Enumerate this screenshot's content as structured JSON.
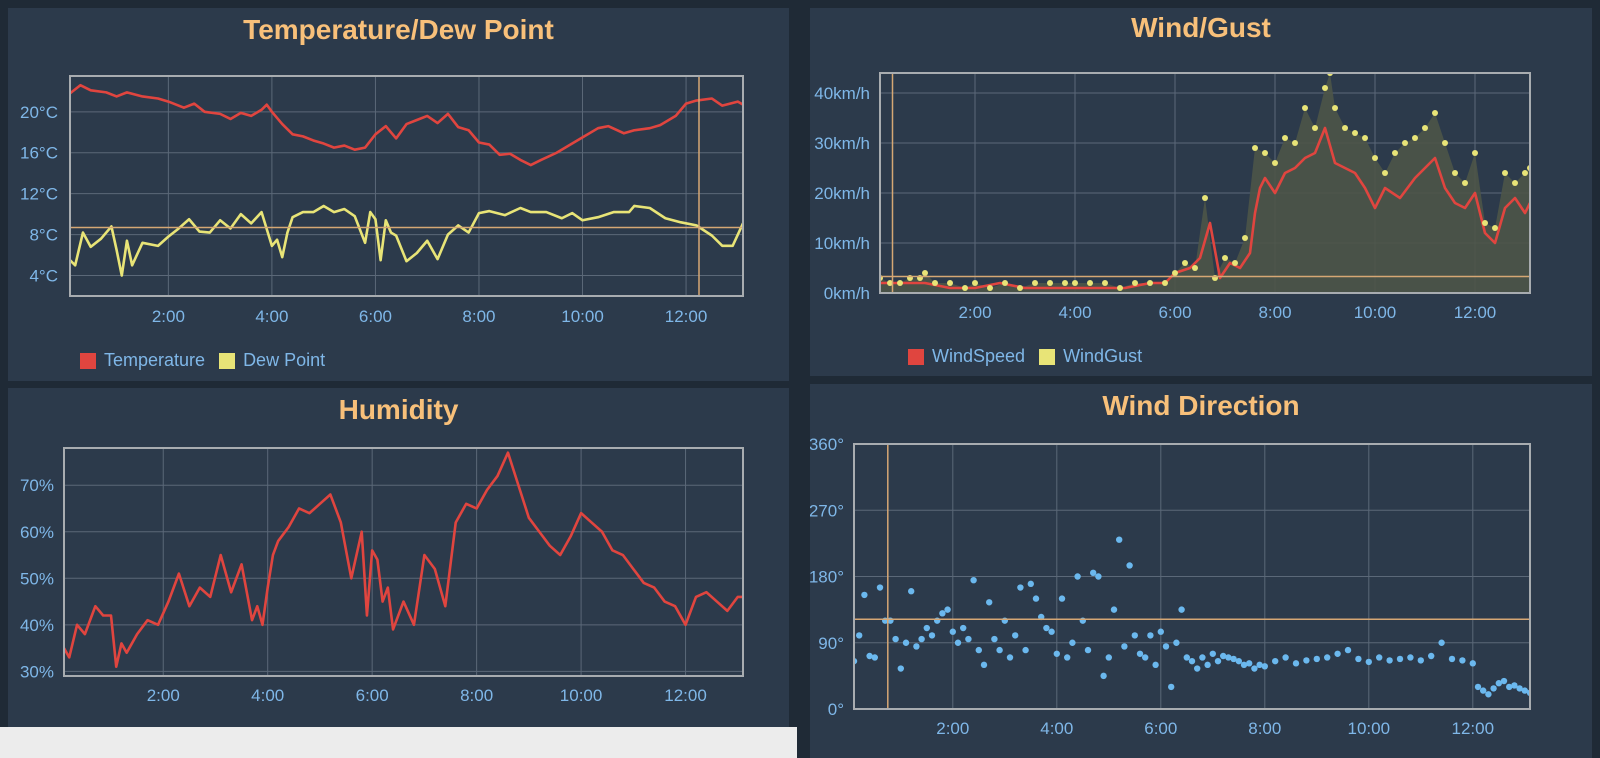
{
  "colors": {
    "background": "#2c3a4b",
    "title": "#f8c07a",
    "axis_text": "#7fb7e8",
    "grid": "#5b6878",
    "frame": "#a8acb0",
    "cursor": "#d6a774",
    "red": "#e0453f",
    "yellow": "#e8e477",
    "blue": "#6bb8ee"
  },
  "chart_data": [
    {
      "id": "temp",
      "type": "line",
      "title": "Temperature/Dew Point",
      "x_ticks": [
        "2:00",
        "4:00",
        "6:00",
        "8:00",
        "10:00",
        "12:00"
      ],
      "y_ticks": [
        "4°C",
        "8°C",
        "12°C",
        "16°C",
        "20°C"
      ],
      "xlim": [
        0.1,
        13.1
      ],
      "ylim": [
        2,
        23.5
      ],
      "y_tick_values": [
        4,
        8,
        12,
        16,
        20
      ],
      "cursor": {
        "x": 12.25,
        "y": 8.7
      },
      "legend": [
        "Temperature",
        "Dew Point"
      ],
      "series": [
        {
          "name": "Temperature",
          "color": "red",
          "x": [
            0.1,
            0.3,
            0.5,
            0.8,
            1.0,
            1.2,
            1.5,
            1.8,
            2.0,
            2.3,
            2.5,
            2.7,
            3.0,
            3.2,
            3.4,
            3.6,
            3.8,
            3.9,
            4.0,
            4.2,
            4.4,
            4.6,
            4.8,
            5.0,
            5.2,
            5.4,
            5.6,
            5.8,
            6.0,
            6.2,
            6.4,
            6.6,
            6.8,
            7.0,
            7.2,
            7.4,
            7.6,
            7.8,
            8.0,
            8.2,
            8.4,
            8.6,
            8.8,
            9.0,
            9.2,
            9.5,
            9.8,
            10.0,
            10.3,
            10.5,
            10.8,
            11.0,
            11.3,
            11.5,
            11.8,
            12.0,
            12.2,
            12.5,
            12.7,
            13.0,
            13.1
          ],
          "y": [
            21.8,
            22.6,
            22.1,
            21.9,
            21.5,
            21.9,
            21.5,
            21.3,
            21.0,
            20.4,
            20.8,
            20.0,
            19.8,
            19.3,
            19.9,
            19.6,
            20.2,
            20.7,
            20.0,
            18.8,
            17.8,
            17.6,
            17.2,
            16.9,
            16.5,
            16.7,
            16.3,
            16.5,
            17.8,
            18.6,
            17.4,
            18.8,
            19.2,
            19.6,
            18.9,
            19.8,
            18.5,
            18.2,
            17.0,
            16.8,
            15.8,
            15.9,
            15.3,
            14.8,
            15.3,
            16.0,
            16.9,
            17.5,
            18.4,
            18.6,
            17.9,
            18.2,
            18.4,
            18.7,
            19.6,
            20.8,
            21.1,
            21.3,
            20.6,
            21.0,
            20.7
          ]
        },
        {
          "name": "Dew Point",
          "color": "yellow",
          "x": [
            0.1,
            0.2,
            0.35,
            0.5,
            0.7,
            0.9,
            1.0,
            1.1,
            1.2,
            1.3,
            1.5,
            1.8,
            2.0,
            2.2,
            2.4,
            2.6,
            2.8,
            3.0,
            3.2,
            3.4,
            3.6,
            3.8,
            4.0,
            4.1,
            4.2,
            4.3,
            4.4,
            4.6,
            4.8,
            5.0,
            5.2,
            5.4,
            5.6,
            5.8,
            5.9,
            6.0,
            6.1,
            6.2,
            6.3,
            6.4,
            6.6,
            6.8,
            7.0,
            7.2,
            7.4,
            7.6,
            7.8,
            8.0,
            8.2,
            8.5,
            8.8,
            9.0,
            9.3,
            9.6,
            9.8,
            10.0,
            10.3,
            10.6,
            10.9,
            11.0,
            11.3,
            11.6,
            11.9,
            12.2,
            12.5,
            12.7,
            12.9,
            13.1
          ],
          "y": [
            5.5,
            5.0,
            8.2,
            6.8,
            7.6,
            8.8,
            6.5,
            4.0,
            7.4,
            5.0,
            7.2,
            6.9,
            7.8,
            8.6,
            9.5,
            8.3,
            8.2,
            9.4,
            8.6,
            10.0,
            9.1,
            10.2,
            6.9,
            7.5,
            5.8,
            8.2,
            9.7,
            10.2,
            10.2,
            10.8,
            10.2,
            10.5,
            9.8,
            7.2,
            10.2,
            9.5,
            5.5,
            9.4,
            8.2,
            7.9,
            5.4,
            6.2,
            7.4,
            5.6,
            8.0,
            8.9,
            8.2,
            10.1,
            10.3,
            9.9,
            10.6,
            10.2,
            10.2,
            9.6,
            10.1,
            9.4,
            9.7,
            10.2,
            10.2,
            10.8,
            10.6,
            9.6,
            9.2,
            8.9,
            7.9,
            6.9,
            6.9,
            9.1
          ]
        }
      ]
    },
    {
      "id": "hum",
      "type": "line",
      "title": "Humidity",
      "x_ticks": [
        "2:00",
        "4:00",
        "6:00",
        "8:00",
        "10:00",
        "12:00"
      ],
      "y_ticks": [
        "30%",
        "40%",
        "50%",
        "60%",
        "70%"
      ],
      "xlim": [
        0.1,
        13.1
      ],
      "ylim": [
        29,
        78
      ],
      "y_tick_values": [
        30,
        40,
        50,
        60,
        70
      ],
      "series": [
        {
          "name": "Humidity",
          "color": "red",
          "x": [
            0.1,
            0.2,
            0.35,
            0.5,
            0.7,
            0.85,
            1.0,
            1.1,
            1.2,
            1.3,
            1.5,
            1.7,
            1.9,
            2.1,
            2.3,
            2.5,
            2.7,
            2.9,
            3.1,
            3.3,
            3.5,
            3.7,
            3.8,
            3.9,
            4.0,
            4.1,
            4.2,
            4.4,
            4.6,
            4.8,
            5.0,
            5.2,
            5.4,
            5.6,
            5.8,
            5.9,
            6.0,
            6.1,
            6.2,
            6.3,
            6.4,
            6.6,
            6.8,
            7.0,
            7.2,
            7.4,
            7.6,
            7.8,
            8.0,
            8.2,
            8.4,
            8.6,
            8.8,
            9.0,
            9.2,
            9.4,
            9.6,
            9.8,
            10.0,
            10.2,
            10.4,
            10.6,
            10.8,
            11.0,
            11.2,
            11.4,
            11.6,
            11.8,
            12.0,
            12.2,
            12.4,
            12.6,
            12.8,
            13.0,
            13.1
          ],
          "y": [
            35,
            33,
            40,
            38,
            44,
            42,
            42,
            31,
            36,
            34,
            38,
            41,
            40,
            45,
            51,
            44,
            48,
            46,
            55,
            47,
            53,
            41,
            44,
            40,
            48,
            55,
            58,
            61,
            65,
            64,
            66,
            68,
            62,
            50,
            60,
            42,
            56,
            54,
            45,
            48,
            39,
            45,
            40,
            55,
            52,
            44,
            62,
            66,
            65,
            69,
            72,
            77,
            70,
            63,
            60,
            57,
            55,
            59,
            64,
            62,
            60,
            56,
            55,
            52,
            49,
            48,
            45,
            44,
            40,
            46,
            47,
            45,
            43,
            46,
            46
          ]
        }
      ]
    },
    {
      "id": "wind",
      "type": "line",
      "title": "Wind/Gust",
      "x_ticks": [
        "2:00",
        "4:00",
        "6:00",
        "8:00",
        "10:00",
        "12:00"
      ],
      "y_ticks": [
        "0km/h",
        "10km/h",
        "20km/h",
        "30km/h",
        "40km/h"
      ],
      "xlim": [
        0.1,
        13.1
      ],
      "ylim": [
        0,
        44
      ],
      "y_tick_values": [
        0,
        10,
        20,
        30,
        40
      ],
      "cursor": {
        "x": 0.35,
        "y": 3.3
      },
      "legend": [
        "WindSpeed",
        "WindGust"
      ],
      "series": [
        {
          "name": "WindSpeed",
          "color": "red",
          "x": [
            0.1,
            0.5,
            1.0,
            1.5,
            2.0,
            2.5,
            3.0,
            3.5,
            4.0,
            4.5,
            5.0,
            5.5,
            5.8,
            6.0,
            6.3,
            6.5,
            6.7,
            6.9,
            7.1,
            7.3,
            7.5,
            7.6,
            7.7,
            7.8,
            8.0,
            8.2,
            8.4,
            8.6,
            8.8,
            9.0,
            9.2,
            9.4,
            9.6,
            9.8,
            10.0,
            10.2,
            10.5,
            10.8,
            11.0,
            11.2,
            11.4,
            11.6,
            11.8,
            12.0,
            12.2,
            12.4,
            12.6,
            12.8,
            13.0,
            13.1
          ],
          "y": [
            2,
            2,
            2,
            1,
            1,
            2,
            1,
            1,
            1,
            1,
            1,
            2,
            2,
            4,
            5,
            7,
            14,
            3,
            6,
            5,
            8,
            16,
            21,
            23,
            20,
            24,
            25,
            27,
            28,
            33,
            26,
            25,
            24,
            21,
            17,
            21,
            19,
            23,
            25,
            27,
            21,
            18,
            17,
            20,
            12,
            10,
            17,
            19,
            16,
            18
          ]
        },
        {
          "name": "WindGust",
          "color": "yellow",
          "type": "scatter",
          "x": [
            0.1,
            0.3,
            0.5,
            0.7,
            0.9,
            1.0,
            1.2,
            1.5,
            1.8,
            2.0,
            2.3,
            2.6,
            2.9,
            3.2,
            3.5,
            3.8,
            4.0,
            4.3,
            4.6,
            4.9,
            5.2,
            5.5,
            5.8,
            6.0,
            6.2,
            6.4,
            6.6,
            6.8,
            7.0,
            7.2,
            7.4,
            7.6,
            7.8,
            8.0,
            8.2,
            8.4,
            8.6,
            8.8,
            9.0,
            9.1,
            9.2,
            9.4,
            9.6,
            9.8,
            10.0,
            10.2,
            10.4,
            10.6,
            10.8,
            11.0,
            11.2,
            11.4,
            11.6,
            11.8,
            12.0,
            12.2,
            12.4,
            12.6,
            12.8,
            13.0,
            13.1
          ],
          "y": [
            3,
            2,
            2,
            3,
            3,
            4,
            2,
            2,
            1,
            2,
            1,
            2,
            1,
            2,
            2,
            2,
            2,
            2,
            2,
            1,
            2,
            2,
            2,
            4,
            6,
            5,
            19,
            3,
            7,
            6,
            11,
            29,
            28,
            26,
            31,
            30,
            37,
            33,
            41,
            44,
            37,
            33,
            32,
            31,
            27,
            24,
            28,
            30,
            31,
            33,
            36,
            30,
            24,
            22,
            28,
            14,
            13,
            24,
            22,
            24,
            25
          ]
        }
      ]
    },
    {
      "id": "dir",
      "type": "scatter",
      "title": "Wind Direction",
      "x_ticks": [
        "2:00",
        "4:00",
        "6:00",
        "8:00",
        "10:00",
        "12:00"
      ],
      "y_ticks": [
        "0°",
        "90°",
        "180°",
        "270°",
        "360°"
      ],
      "xlim": [
        0.1,
        13.1
      ],
      "ylim": [
        0,
        360
      ],
      "y_tick_values": [
        0,
        90,
        180,
        270,
        360
      ],
      "cursor": {
        "x": 0.75,
        "y": 122
      },
      "series": [
        {
          "name": "Direction",
          "color": "blue",
          "x": [
            0.1,
            0.2,
            0.3,
            0.4,
            0.5,
            0.6,
            0.7,
            0.8,
            0.9,
            1.0,
            1.1,
            1.2,
            1.3,
            1.4,
            1.5,
            1.6,
            1.7,
            1.8,
            1.9,
            2.0,
            2.1,
            2.2,
            2.3,
            2.4,
            2.5,
            2.6,
            2.7,
            2.8,
            2.9,
            3.0,
            3.1,
            3.2,
            3.3,
            3.4,
            3.5,
            3.6,
            3.7,
            3.8,
            3.9,
            4.0,
            4.1,
            4.2,
            4.3,
            4.4,
            4.5,
            4.6,
            4.7,
            4.8,
            4.9,
            5.0,
            5.1,
            5.2,
            5.3,
            5.4,
            5.5,
            5.6,
            5.7,
            5.8,
            5.9,
            6.0,
            6.1,
            6.2,
            6.3,
            6.4,
            6.5,
            6.6,
            6.7,
            6.8,
            6.9,
            7.0,
            7.1,
            7.2,
            7.3,
            7.4,
            7.5,
            7.6,
            7.7,
            7.8,
            7.9,
            8.0,
            8.2,
            8.4,
            8.6,
            8.8,
            9.0,
            9.2,
            9.4,
            9.6,
            9.8,
            10.0,
            10.2,
            10.4,
            10.6,
            10.8,
            11.0,
            11.2,
            11.4,
            11.6,
            11.8,
            12.0,
            12.1,
            12.2,
            12.3,
            12.4,
            12.5,
            12.6,
            12.7,
            12.8,
            12.9,
            13.0,
            13.1
          ],
          "y": [
            65,
            100,
            155,
            72,
            70,
            165,
            120,
            120,
            95,
            55,
            90,
            160,
            85,
            95,
            110,
            100,
            120,
            130,
            135,
            105,
            90,
            110,
            95,
            175,
            80,
            60,
            145,
            95,
            80,
            120,
            70,
            100,
            165,
            80,
            170,
            150,
            125,
            110,
            105,
            75,
            150,
            70,
            90,
            180,
            120,
            80,
            185,
            180,
            45,
            70,
            135,
            230,
            85,
            195,
            100,
            75,
            70,
            100,
            60,
            105,
            85,
            30,
            90,
            135,
            70,
            65,
            55,
            70,
            60,
            75,
            65,
            72,
            70,
            68,
            65,
            60,
            62,
            55,
            60,
            58,
            65,
            70,
            62,
            66,
            68,
            70,
            75,
            80,
            68,
            64,
            70,
            66,
            68,
            70,
            66,
            72,
            90,
            68,
            66,
            62,
            30,
            25,
            20,
            28,
            35,
            38,
            30,
            32,
            28,
            25,
            22
          ]
        }
      ]
    }
  ]
}
